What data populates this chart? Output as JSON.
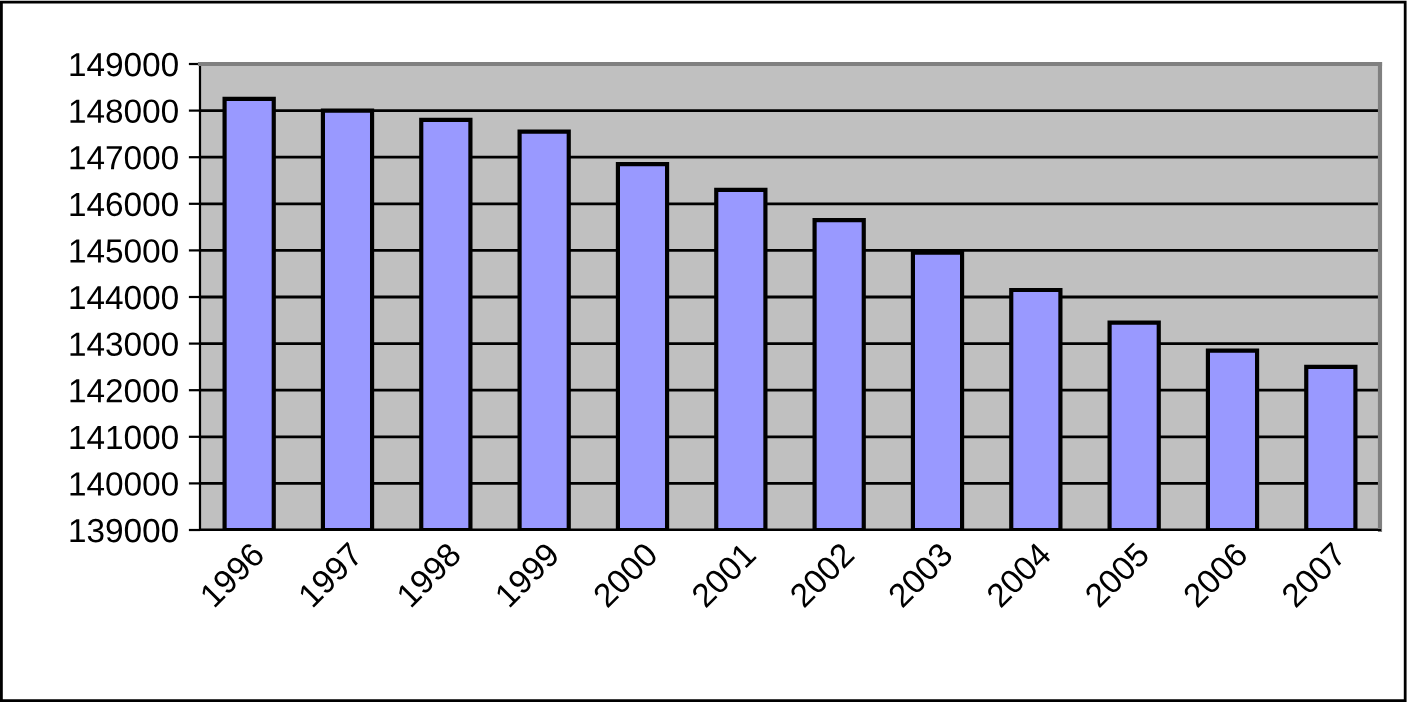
{
  "chart_data": {
    "type": "bar",
    "categories": [
      "1996",
      "1997",
      "1998",
      "1999",
      "2000",
      "2001",
      "2002",
      "2003",
      "2004",
      "2005",
      "2006",
      "2007"
    ],
    "values": [
      148250,
      148000,
      147800,
      147550,
      146850,
      146300,
      145650,
      144950,
      144150,
      143450,
      142850,
      142500
    ],
    "color": "#9999ff",
    "ylim": [
      139000,
      149000
    ],
    "yticks": [
      139000,
      140000,
      141000,
      142000,
      143000,
      144000,
      145000,
      146000,
      147000,
      148000,
      149000
    ],
    "grid": "y"
  }
}
